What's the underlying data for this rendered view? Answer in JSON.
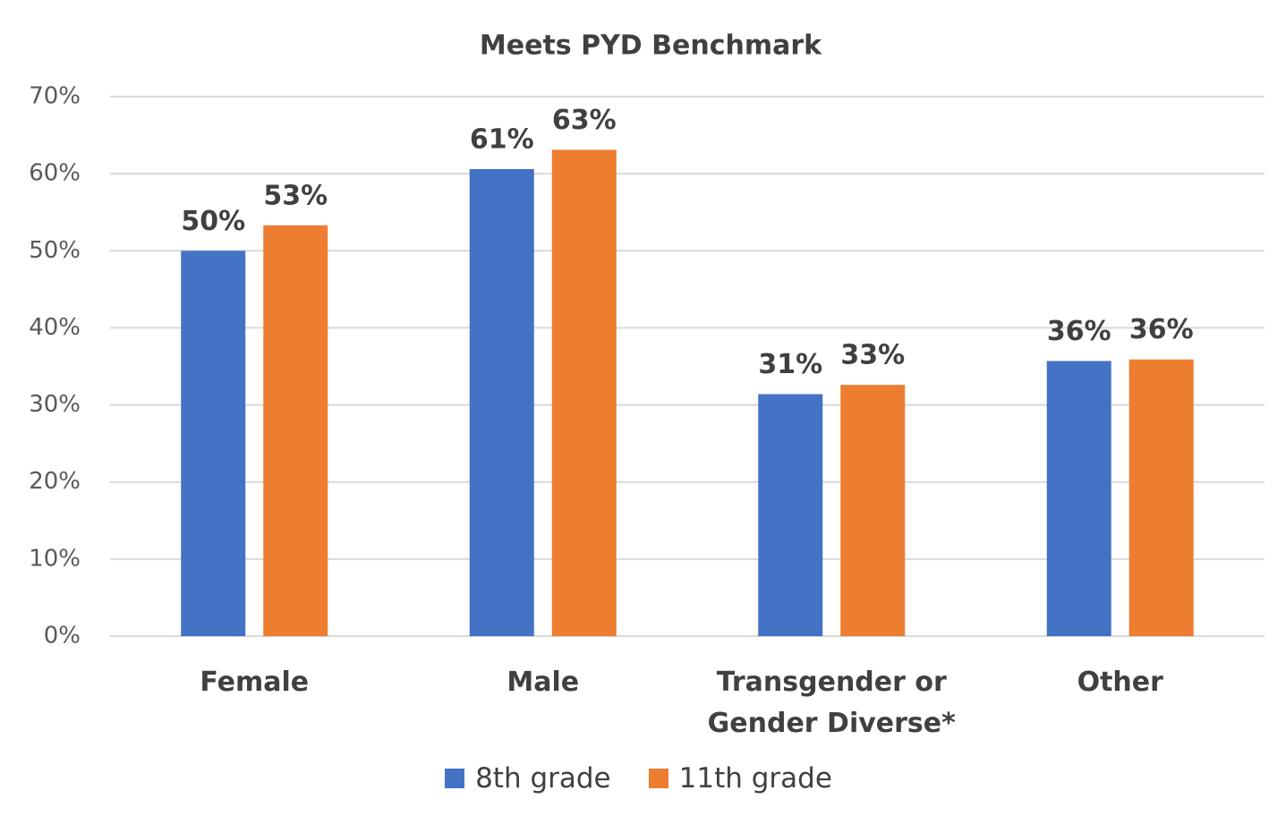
{
  "chart_data": {
    "type": "bar",
    "title": "Meets PYD Benchmark",
    "categories": [
      "Female",
      "Male",
      "Transgender or Gender Diverse*",
      "Other"
    ],
    "series": [
      {
        "name": "8th grade",
        "color": "#4472c4",
        "values": [
          50,
          60.6,
          31.4,
          35.7
        ],
        "value_labels": [
          "50%",
          "61%",
          "31%",
          "36%"
        ]
      },
      {
        "name": "11th grade",
        "color": "#ed7d31",
        "values": [
          53.3,
          63.1,
          32.6,
          35.9
        ],
        "value_labels": [
          "53%",
          "63%",
          "33%",
          "36%"
        ]
      }
    ],
    "ylim": [
      0,
      70
    ],
    "yticks": [
      {
        "value": 0,
        "label": "0%"
      },
      {
        "value": 10,
        "label": "10%"
      },
      {
        "value": 20,
        "label": "20%"
      },
      {
        "value": 30,
        "label": "30%"
      },
      {
        "value": 40,
        "label": "40%"
      },
      {
        "value": 50,
        "label": "50%"
      },
      {
        "value": 60,
        "label": "60%"
      },
      {
        "value": 70,
        "label": "70%"
      }
    ],
    "grid": true,
    "legend": "bottom"
  }
}
